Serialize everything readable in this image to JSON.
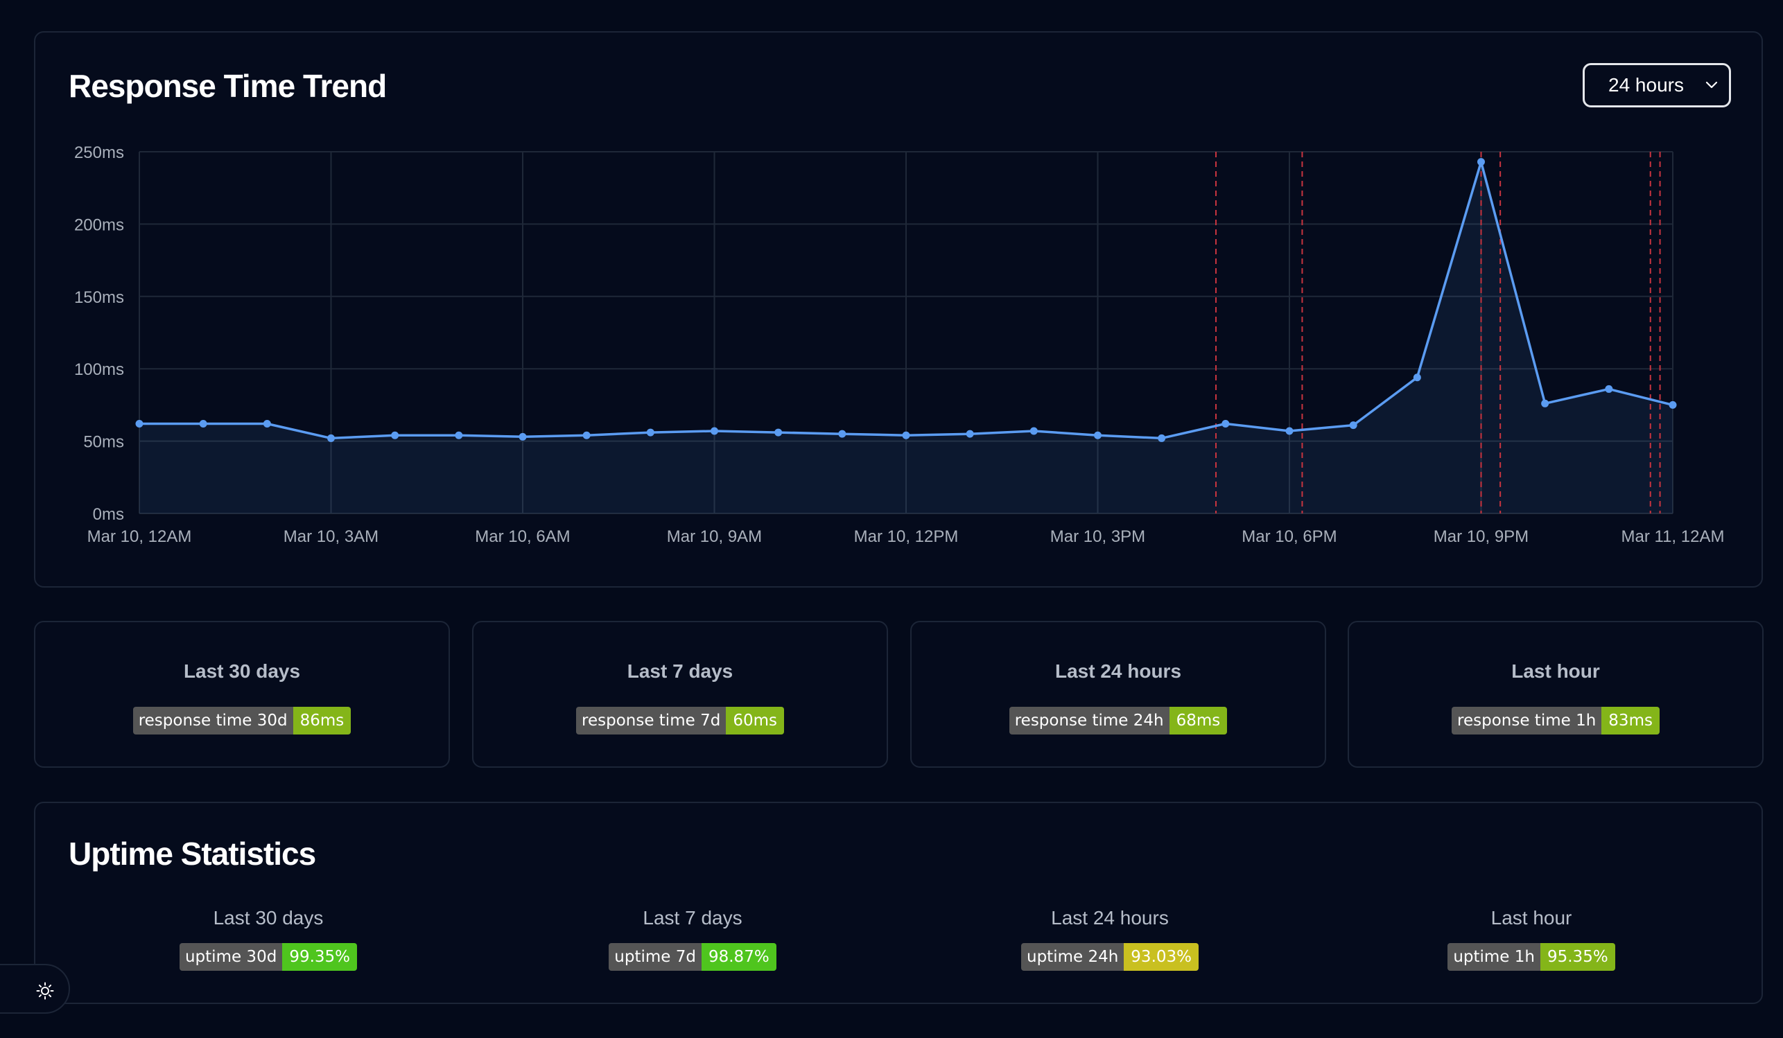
{
  "trend": {
    "title": "Response Time Trend",
    "range_selected": "24 hours"
  },
  "chart_data": {
    "type": "area",
    "x_start": "Mar 10, 12AM",
    "x_end": "Mar 11, 12AM",
    "y_tick_labels": [
      "0ms",
      "50ms",
      "100ms",
      "150ms",
      "200ms",
      "250ms"
    ],
    "y_ticks": [
      0,
      50,
      100,
      150,
      200,
      250
    ],
    "ylim": [
      0,
      250
    ],
    "x_tick_labels": [
      "Mar 10, 12AM",
      "Mar 10, 3AM",
      "Mar 10, 6AM",
      "Mar 10, 9AM",
      "Mar 10, 12PM",
      "Mar 10, 3PM",
      "Mar 10, 6PM",
      "Mar 10, 9PM",
      "Mar 11, 12AM"
    ],
    "x_tick_hours": [
      0,
      3,
      6,
      9,
      12,
      15,
      18,
      21,
      24
    ],
    "grid": true,
    "series": [
      {
        "color": "#5b9cf2",
        "hours": [
          0,
          1,
          2,
          3,
          4,
          5,
          6,
          7,
          8,
          9,
          10,
          11,
          12,
          13,
          14,
          15,
          16,
          17,
          18,
          19,
          20,
          21,
          22,
          23,
          24
        ],
        "values": [
          62,
          62,
          62,
          52,
          54,
          54,
          53,
          54,
          56,
          57,
          56,
          55,
          54,
          55,
          57,
          54,
          52,
          62,
          57,
          61,
          94,
          243,
          76,
          86,
          75
        ]
      }
    ],
    "incident_marker_hours": [
      16.85,
      18.2,
      21.0,
      21.3,
      23.65,
      23.8
    ],
    "incident_color": "#c8343f"
  },
  "response_stats": [
    {
      "label": "Last 30 days",
      "badge_label": "response time 30d",
      "badge_value": "86ms",
      "color": "#84b519"
    },
    {
      "label": "Last 7 days",
      "badge_label": "response time 7d",
      "badge_value": "60ms",
      "color": "#84b519"
    },
    {
      "label": "Last 24 hours",
      "badge_label": "response time 24h",
      "badge_value": "68ms",
      "color": "#84b519"
    },
    {
      "label": "Last hour",
      "badge_label": "response time 1h",
      "badge_value": "83ms",
      "color": "#84b519"
    }
  ],
  "uptime": {
    "title": "Uptime Statistics",
    "items": [
      {
        "label": "Last 30 days",
        "badge_label": "uptime 30d",
        "badge_value": "99.35%",
        "color": "#4fc51e"
      },
      {
        "label": "Last 7 days",
        "badge_label": "uptime 7d",
        "badge_value": "98.87%",
        "color": "#4fc51e"
      },
      {
        "label": "Last 24 hours",
        "badge_label": "uptime 24h",
        "badge_value": "93.03%",
        "color": "#c9c020"
      },
      {
        "label": "Last hour",
        "badge_label": "uptime 1h",
        "badge_value": "95.35%",
        "color": "#84b519"
      }
    ]
  },
  "theme_toggle": {
    "icon": "sun-icon"
  }
}
